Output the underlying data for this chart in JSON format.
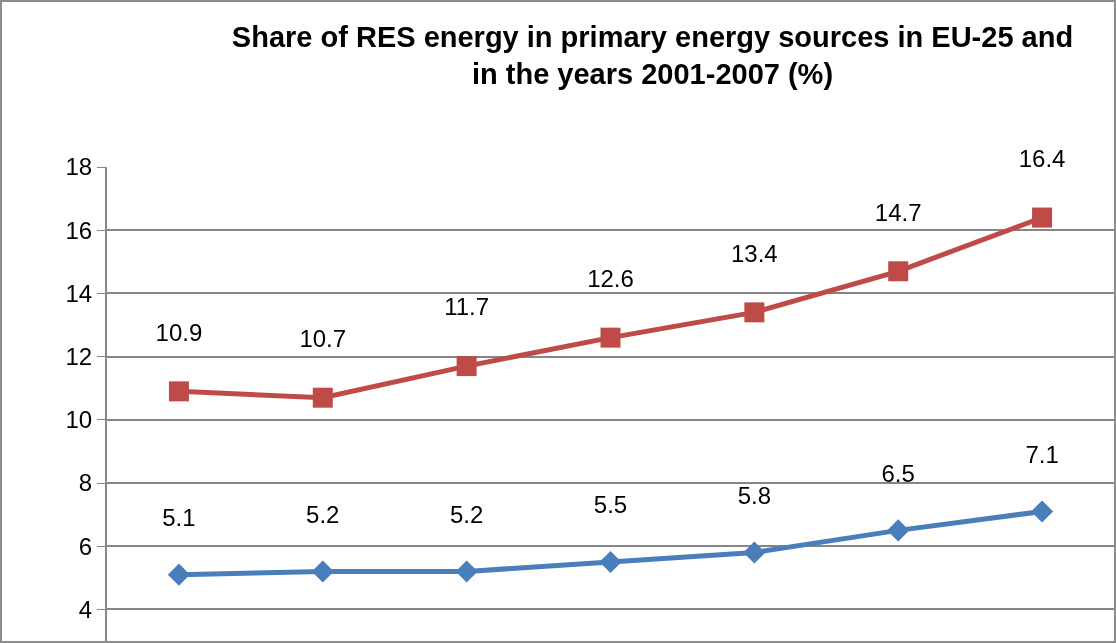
{
  "chart_data": {
    "type": "line",
    "title": "Share of RES energy in primary energy sources in EU-25 and\nin the years 2001-2007 (%)",
    "categories": [
      null,
      null,
      null,
      null,
      null,
      null,
      null
    ],
    "series": [
      {
        "color": "#be4b48",
        "marker": "square",
        "values": [
          10.9,
          10.7,
          11.7,
          12.6,
          13.4,
          14.7,
          16.4
        ]
      },
      {
        "color": "#4a7ebb",
        "marker": "diamond",
        "values": [
          5.1,
          5.2,
          5.2,
          5.5,
          5.8,
          6.5,
          7.1
        ]
      }
    ],
    "ylim": [
      3,
      18
    ],
    "yticks": [
      4,
      6,
      8,
      10,
      12,
      14,
      16,
      18
    ],
    "grid": "y",
    "data_labels": true
  }
}
